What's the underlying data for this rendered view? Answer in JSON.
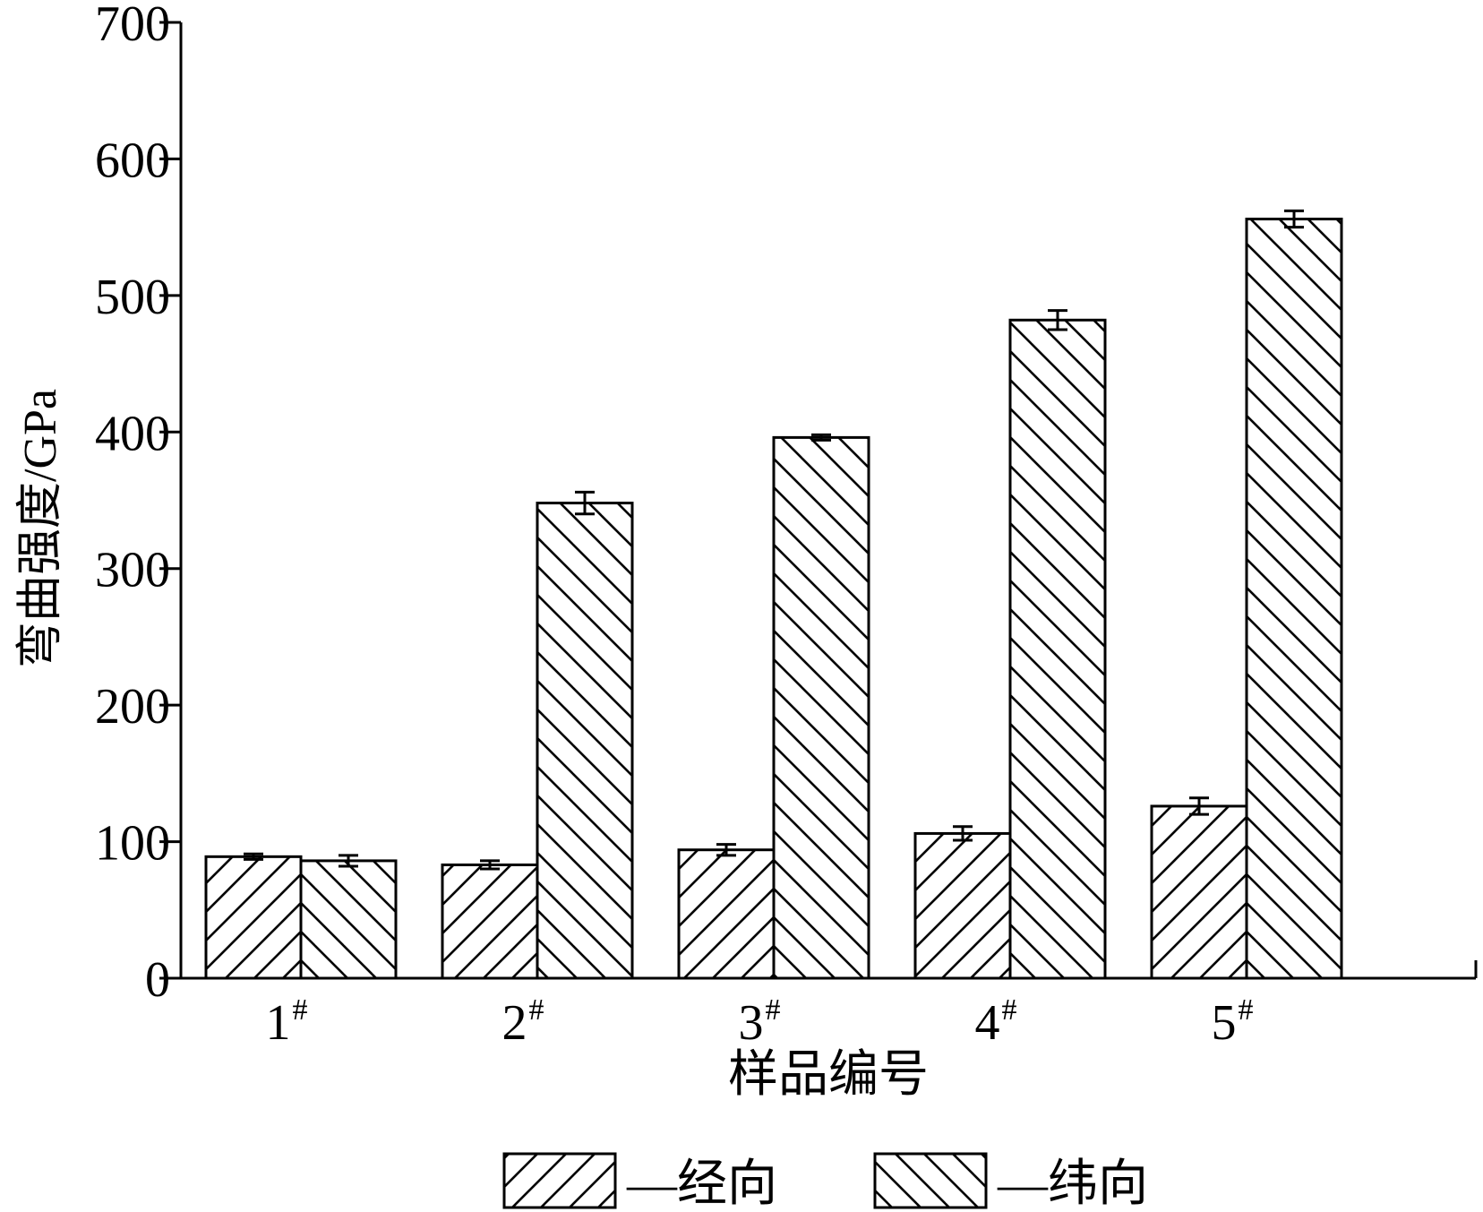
{
  "chart_data": {
    "type": "bar",
    "categories": [
      "1",
      "2",
      "3",
      "4",
      "5"
    ],
    "category_mark": "#",
    "series": [
      {
        "name": "经向",
        "legend_label": "—经向",
        "pattern": "forward-hatch",
        "values": [
          89,
          83,
          94,
          106,
          126
        ],
        "errors": [
          2,
          3,
          4,
          5,
          6
        ]
      },
      {
        "name": "纬向",
        "legend_label": "—纬向",
        "pattern": "backward-hatch",
        "values": [
          86,
          348,
          396,
          482,
          556
        ],
        "errors": [
          4,
          8,
          2,
          7,
          6
        ]
      }
    ],
    "title": "",
    "xlabel": "样品编号",
    "ylabel": "弯曲强度/GPa",
    "ylim": [
      0,
      700
    ],
    "yticks": [
      0,
      100,
      200,
      300,
      400,
      500,
      600,
      700
    ],
    "grid": false,
    "legend_position": "bottom",
    "colors": {
      "stroke": "#000000",
      "fill": "#ffffff"
    }
  }
}
